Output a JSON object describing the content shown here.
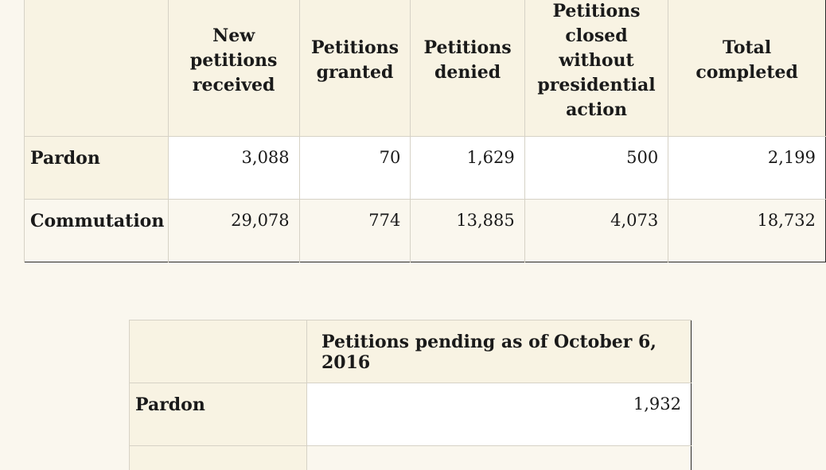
{
  "table_completed": {
    "columns": [
      "",
      "New petitions received",
      "Petitions granted",
      "Petitions denied",
      "Petitions closed without presidential action",
      "Total completed"
    ],
    "rows": [
      {
        "label": "Pardon",
        "values": [
          "3,088",
          "70",
          "1,629",
          "500",
          "2,199"
        ]
      },
      {
        "label": "Commutation",
        "values": [
          "29,078",
          "774",
          "13,885",
          "4,073",
          "18,732"
        ]
      }
    ]
  },
  "table_pending": {
    "columns": [
      "",
      "Petitions pending as of October 6, 2016"
    ],
    "rows": [
      {
        "label": "Pardon",
        "values": [
          "1,932"
        ]
      },
      {
        "label": "",
        "values": [
          ""
        ]
      }
    ]
  }
}
